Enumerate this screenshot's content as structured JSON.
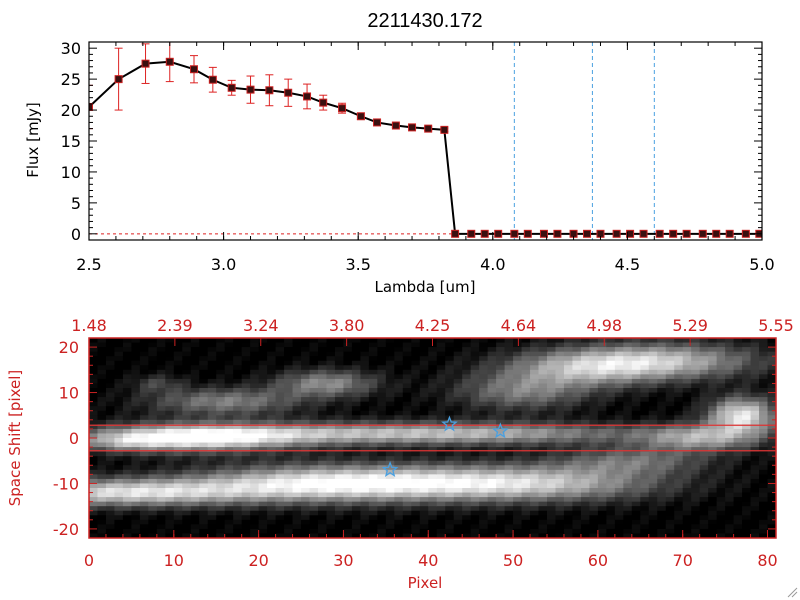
{
  "chart_data": [
    {
      "type": "line",
      "title": "2211430.172",
      "xlabel": "Lambda [um]",
      "ylabel": "Flux [mJy]",
      "xlim": [
        2.5,
        5.0
      ],
      "ylim": [
        -1,
        31
      ],
      "xticks": [
        "2.5",
        "3.0",
        "3.5",
        "4.0",
        "4.5",
        "5.0"
      ],
      "yticks": [
        "0",
        "5",
        "10",
        "15",
        "20",
        "25",
        "30"
      ],
      "grid": false,
      "series": [
        {
          "x": [
            2.5,
            2.61,
            2.71,
            2.8,
            2.89,
            2.96,
            3.03,
            3.1,
            3.17,
            3.24,
            3.31,
            3.37,
            3.44,
            3.51,
            3.57,
            3.64,
            3.7,
            3.76,
            3.82,
            3.86,
            3.92,
            3.97,
            4.02,
            4.08,
            4.13,
            4.19,
            4.24,
            4.3,
            4.35,
            4.4,
            4.46,
            4.51,
            4.56,
            4.62,
            4.67,
            4.72,
            4.78,
            4.83,
            4.88,
            4.94,
            4.99
          ],
          "y": [
            20.5,
            25.0,
            27.5,
            27.8,
            26.6,
            24.9,
            23.6,
            23.3,
            23.2,
            22.8,
            22.2,
            21.2,
            20.3,
            19.0,
            18.0,
            17.5,
            17.2,
            17.0,
            16.8,
            0.0,
            0.0,
            0.0,
            0.0,
            0.0,
            0.0,
            0.0,
            0.0,
            0.0,
            0.0,
            0.0,
            0.0,
            0.0,
            0.0,
            0.0,
            0.0,
            0.0,
            0.0,
            0.0,
            0.0,
            0.0,
            0.0
          ],
          "yerr": [
            3.5,
            5.0,
            3.2,
            3.2,
            2.2,
            2.0,
            1.2,
            2.2,
            2.5,
            2.2,
            2.0,
            1.2,
            0.8,
            0.5,
            0.4,
            0.3,
            0.3,
            0.3,
            0.3,
            0,
            0,
            0,
            0,
            0,
            0,
            0,
            0,
            0,
            0,
            0,
            0,
            0,
            0,
            0,
            0,
            0,
            0,
            0,
            0,
            0,
            0
          ]
        }
      ],
      "vlines_x": [
        4.08,
        4.37,
        4.6
      ],
      "colors": {
        "line": "#000000",
        "marker": "#cc2222",
        "errorbar": "#dd2222",
        "vline": "#4aa0e0",
        "zero_line": "#dd2222"
      }
    },
    {
      "type": "heatmap",
      "xlabel": "Pixel",
      "ylabel": "Space Shift [pixel]",
      "xlim": [
        0,
        81
      ],
      "ylim": [
        -22,
        22
      ],
      "xticks": [
        "0",
        "10",
        "20",
        "30",
        "40",
        "50",
        "60",
        "70",
        "80"
      ],
      "yticks": [
        "-20",
        "-10",
        "0",
        "10",
        "20"
      ],
      "top_ticks": [
        "1.48",
        "2.39",
        "3.24",
        "3.80",
        "4.25",
        "4.64",
        "4.98",
        "5.29",
        "5.55"
      ],
      "hlines_y": [
        2.8,
        -2.8
      ],
      "stars": [
        {
          "x": 42.5,
          "y": 3.0
        },
        {
          "x": 48.5,
          "y": 1.5
        },
        {
          "x": 35.5,
          "y": -7.0
        }
      ],
      "colors": {
        "axis": "#cc2222",
        "star": "#4aa0e0",
        "hline": "#dd3333"
      }
    }
  ]
}
